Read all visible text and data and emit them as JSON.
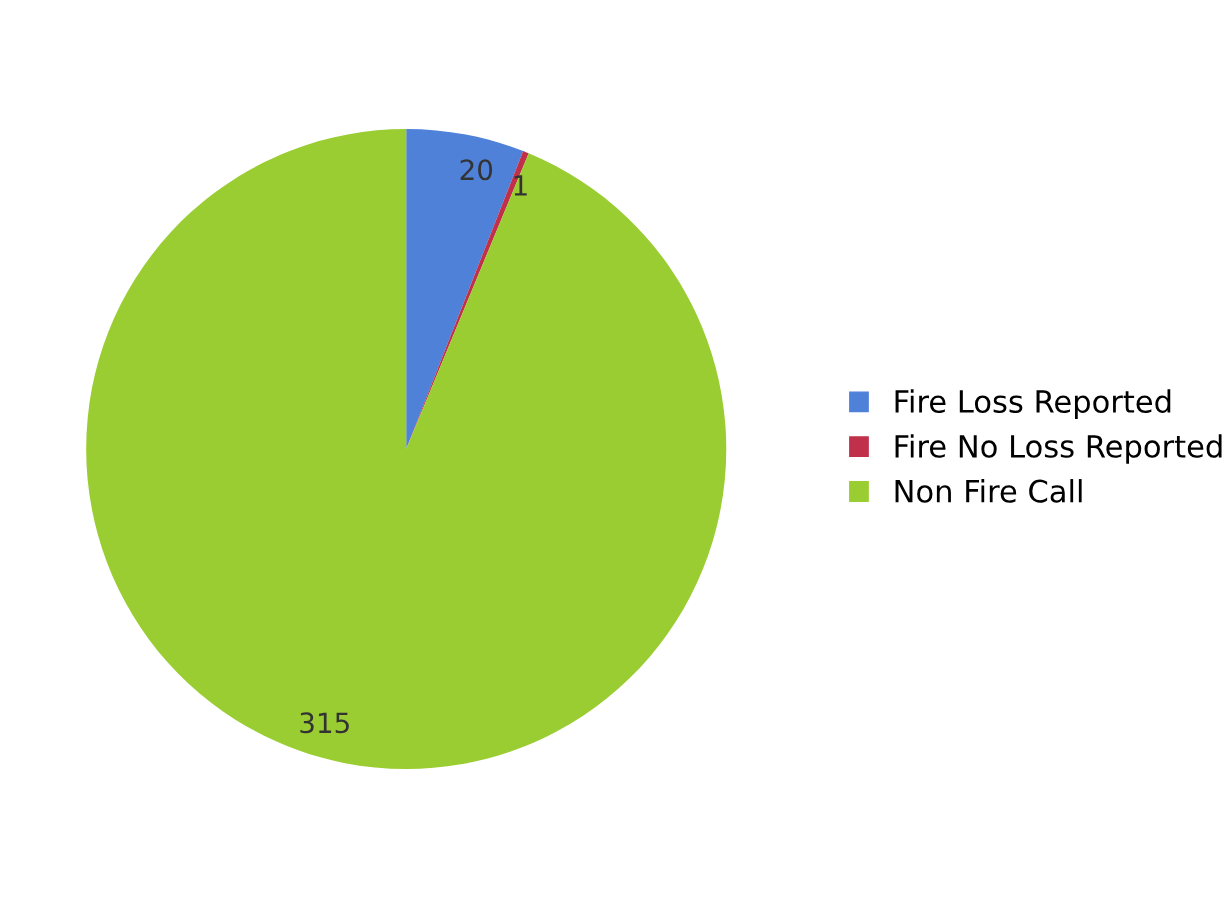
{
  "chart_data": {
    "type": "pie",
    "categories": [
      "Fire Loss Reported",
      "Fire No Loss Reported",
      "Non Fire Call"
    ],
    "values": [
      20,
      1,
      315
    ],
    "colors": [
      "#4f81d9",
      "#c0304a",
      "#9acd32"
    ],
    "data_labels": true,
    "legend": "right"
  }
}
